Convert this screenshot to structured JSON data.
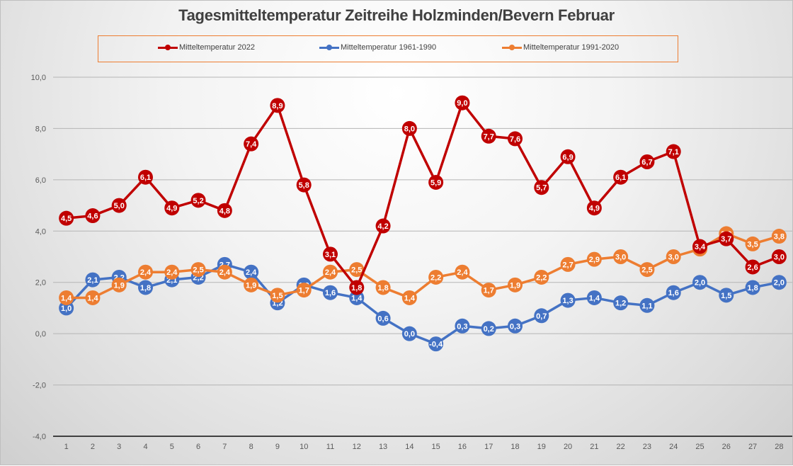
{
  "chart_data": {
    "type": "line",
    "title": "Tagesmitteltemperatur Zeitreihe Holzminden/Bevern Februar",
    "xlabel": "",
    "ylabel": "",
    "x": [
      1,
      2,
      3,
      4,
      5,
      6,
      7,
      8,
      9,
      10,
      11,
      12,
      13,
      14,
      15,
      16,
      17,
      18,
      19,
      20,
      21,
      22,
      23,
      24,
      25,
      26,
      27,
      28
    ],
    "ylim": [
      -4,
      10
    ],
    "yticks": [
      -4,
      -2,
      0,
      2,
      4,
      6,
      8,
      10
    ],
    "ytick_labels": [
      "-4,0",
      "-2,0",
      "0,0",
      "2,0",
      "4,0",
      "6,0",
      "8,0",
      "10,0"
    ],
    "grid": true,
    "legend": "top-center",
    "series": [
      {
        "name": "Mitteltemperatur 1961-1990",
        "color": "#4472c4",
        "values": [
          1.0,
          2.1,
          2.2,
          1.8,
          2.1,
          2.2,
          2.7,
          2.4,
          1.2,
          1.9,
          1.6,
          1.4,
          0.6,
          0.0,
          -0.4,
          0.3,
          0.2,
          0.3,
          0.7,
          1.3,
          1.4,
          1.2,
          1.1,
          1.6,
          2.0,
          1.5,
          1.8,
          2.0
        ]
      },
      {
        "name": "Mitteltemperatur 1991-2020",
        "color": "#ed7d31",
        "values": [
          1.4,
          1.4,
          1.9,
          2.4,
          2.4,
          2.5,
          2.4,
          1.9,
          1.5,
          1.7,
          2.4,
          2.5,
          1.8,
          1.4,
          2.2,
          2.4,
          1.7,
          1.9,
          2.2,
          2.7,
          2.9,
          3.0,
          2.5,
          3.0,
          3.3,
          3.9,
          3.5,
          3.8
        ]
      },
      {
        "name": "Mitteltemperatur 2022",
        "color": "#c00000",
        "values": [
          4.5,
          4.6,
          5.0,
          6.1,
          4.9,
          5.2,
          4.8,
          7.4,
          8.9,
          5.8,
          3.1,
          1.8,
          4.2,
          8.0,
          5.9,
          9.0,
          7.7,
          7.6,
          5.7,
          6.9,
          4.9,
          6.1,
          6.7,
          7.1,
          3.4,
          3.7,
          2.6,
          3.0
        ]
      }
    ],
    "legend_order": [
      "Mitteltemperatur 2022",
      "Mitteltemperatur 1961-1990",
      "Mitteltemperatur 1991-2020"
    ]
  }
}
